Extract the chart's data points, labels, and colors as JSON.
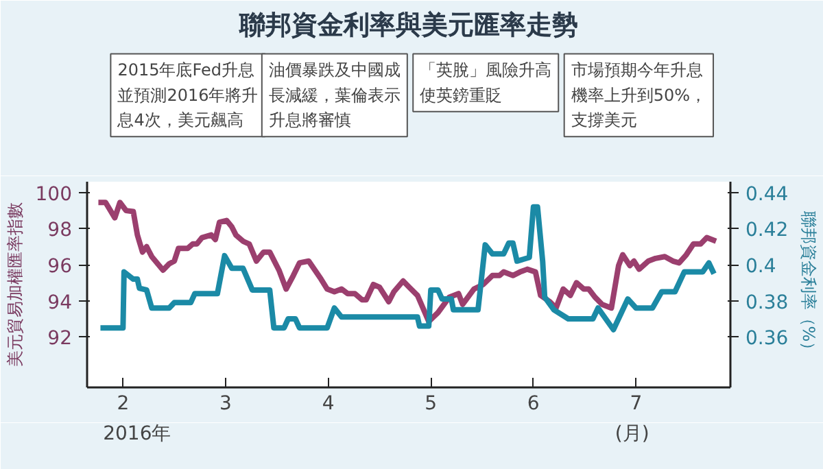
{
  "chart_data": {
    "type": "line",
    "title": "聯邦資金利率與美元匯率走勢",
    "xlabel": "(月)",
    "ylabel": "美元貿易加權匯率指數",
    "y2label": "聯邦資金利率（%）",
    "x": [
      1.76,
      1.83,
      1.92,
      1.97,
      2.03,
      2.1,
      2.14,
      2.19,
      2.23,
      2.28,
      2.39,
      2.45,
      2.5,
      2.54,
      2.63,
      2.68,
      2.72,
      2.77,
      2.86,
      2.9,
      2.94,
      3.01,
      3.06,
      3.1,
      3.17,
      3.23,
      3.3,
      3.37,
      3.43,
      3.52,
      3.59,
      3.66,
      3.72,
      3.81,
      3.93,
      3.99,
      4.06,
      4.13,
      4.19,
      4.26,
      4.33,
      4.37,
      4.44,
      4.5,
      4.59,
      4.64,
      4.73,
      4.79,
      4.87,
      4.98,
      5.07,
      5.18,
      5.27,
      5.31,
      5.42,
      5.51,
      5.6,
      5.67,
      5.71,
      5.8,
      5.87,
      5.94,
      6.02,
      6.07,
      6.16,
      6.22,
      6.29,
      6.36,
      6.42,
      6.49,
      6.54,
      6.6,
      6.67,
      6.76,
      6.83,
      6.87,
      6.94,
      6.98,
      7.03,
      7.12,
      7.19,
      7.28,
      7.36,
      7.42,
      7.49,
      7.56,
      7.63,
      7.69,
      7.78
    ],
    "series": [
      {
        "color": "#9b3f6e",
        "values": [
          99.45,
          99.45,
          98.6,
          99.45,
          99.0,
          98.95,
          97.65,
          96.7,
          97.0,
          96.45,
          95.7,
          96.05,
          96.2,
          96.9,
          96.9,
          97.15,
          97.15,
          97.5,
          97.65,
          97.4,
          98.35,
          98.45,
          98.1,
          97.65,
          97.3,
          97.15,
          96.2,
          96.7,
          96.7,
          95.7,
          94.65,
          95.4,
          96.1,
          96.2,
          95.2,
          94.65,
          94.5,
          94.65,
          94.4,
          94.4,
          94.05,
          94.05,
          94.9,
          94.75,
          93.95,
          94.5,
          95.1,
          94.75,
          94.3,
          92.85,
          93.35,
          94.2,
          94.4,
          93.8,
          94.65,
          94.9,
          95.4,
          95.4,
          95.6,
          95.4,
          95.6,
          95.75,
          95.6,
          94.3,
          93.95,
          93.6,
          94.65,
          94.3,
          95.0,
          94.65,
          94.65,
          94.2,
          93.8,
          93.6,
          95.95,
          96.55,
          95.95,
          96.2,
          95.75,
          96.2,
          96.35,
          96.45,
          96.2,
          96.1,
          96.55,
          97.15,
          97.15,
          97.5,
          97.3
        ]
      },
      {
        "color": "#1b8aa6",
        "axis": "y2",
        "type": "step",
        "x": [
          1.78,
          2.0,
          2.01,
          2.1,
          2.14,
          2.16,
          2.23,
          2.28,
          2.45,
          2.5,
          2.66,
          2.7,
          2.92,
          2.99,
          3.06,
          3.17,
          3.26,
          3.43,
          3.47,
          3.57,
          3.61,
          3.68,
          3.72,
          3.99,
          4.06,
          4.13,
          4.79,
          4.87,
          4.89,
          4.98,
          5.0,
          5.07,
          5.11,
          5.2,
          5.22,
          5.46,
          5.53,
          5.6,
          5.71,
          5.76,
          5.8,
          5.84,
          5.96,
          6.0,
          6.04,
          6.09,
          6.11,
          6.2,
          6.34,
          6.58,
          6.63,
          6.78,
          6.92,
          7.0,
          7.16,
          7.25,
          7.38,
          7.47,
          7.65,
          7.71,
          7.76
        ],
        "values": [
          0.365,
          0.365,
          0.396,
          0.392,
          0.392,
          0.387,
          0.386,
          0.376,
          0.376,
          0.379,
          0.379,
          0.384,
          0.384,
          0.405,
          0.398,
          0.398,
          0.386,
          0.386,
          0.365,
          0.365,
          0.37,
          0.37,
          0.365,
          0.365,
          0.376,
          0.371,
          0.371,
          0.371,
          0.366,
          0.366,
          0.386,
          0.386,
          0.381,
          0.381,
          0.375,
          0.375,
          0.411,
          0.406,
          0.406,
          0.412,
          0.412,
          0.402,
          0.404,
          0.432,
          0.432,
          0.402,
          0.382,
          0.375,
          0.37,
          0.37,
          0.376,
          0.364,
          0.381,
          0.376,
          0.376,
          0.385,
          0.385,
          0.396,
          0.396,
          0.401,
          0.395
        ]
      }
    ],
    "xlim": [
      1.65,
      7.92
    ],
    "xticks": [
      2,
      3,
      4,
      5,
      6,
      7
    ],
    "ylim": [
      89.2,
      100.6
    ],
    "yticks": [
      92,
      94,
      96,
      98,
      100
    ],
    "y2lim": [
      0.332,
      0.446
    ],
    "y2ticks": [
      0.36,
      0.38,
      0.4,
      0.42,
      0.44
    ],
    "grid": false,
    "annotations": [
      "2015年底Fed升息並預測2016年將升息4次，美元飆高",
      "油價暴跌及中國成長減緩，葉倫表示升息將審慎",
      "「英脫」風險升高使英鎊重貶",
      "市場預期今年升息機率上升到50%，支撐美元",
      "2016年"
    ]
  }
}
